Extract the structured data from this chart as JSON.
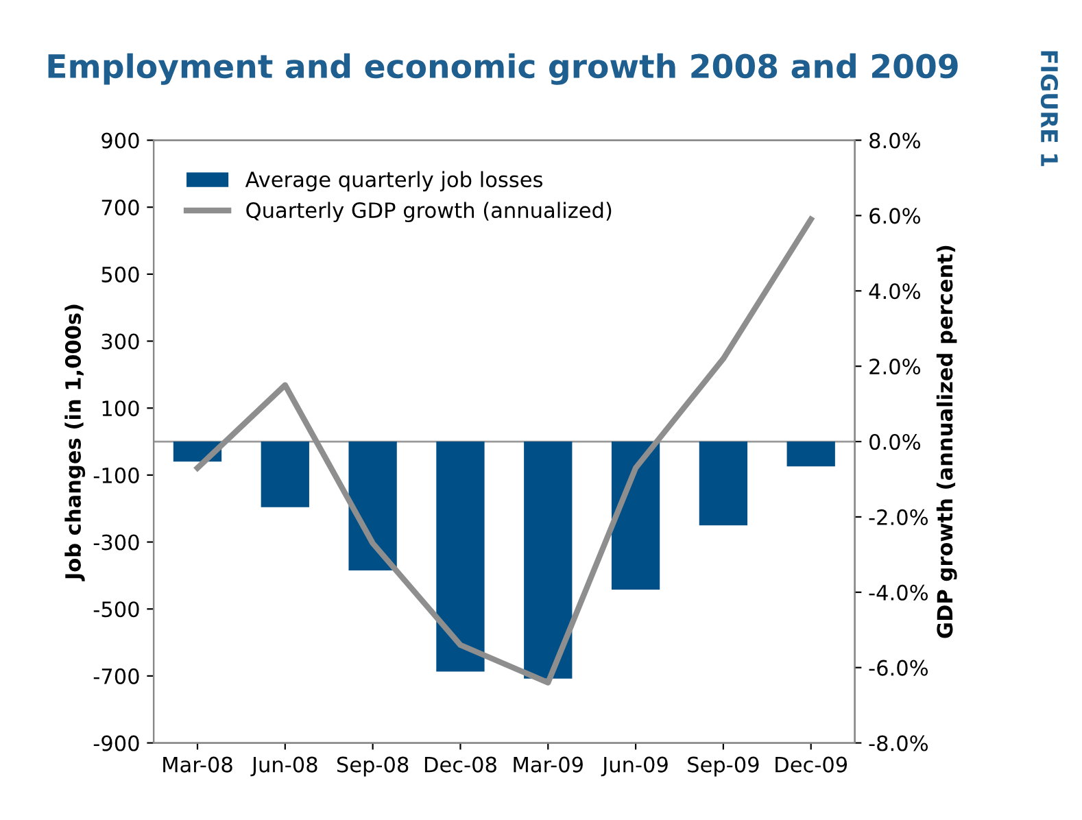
{
  "chart_data": {
    "type": "bar",
    "title": "Employment and economic growth 2008 and 2009",
    "categories": [
      "Mar-08",
      "Jun-08",
      "Sep-08",
      "Dec-08",
      "Mar-09",
      "Jun-09",
      "Sep-09",
      "Dec-09"
    ],
    "series": [
      {
        "name": "Average quarterly job losses",
        "color": "#004f86",
        "values": [
          -60,
          -196,
          -385,
          -687,
          -708,
          -442,
          -250,
          -74
        ]
      },
      {
        "name": "Quarterly GDP growth (annualized)",
        "type": "line",
        "axis": "y2",
        "color": "#8e8e8e",
        "values": [
          -0.7,
          1.5,
          -2.7,
          -5.4,
          -6.4,
          -0.7,
          2.2,
          5.9
        ]
      }
    ],
    "ylabel": "Job changes (in 1,000s)",
    "y2label": "GDP growth (annualized percent)",
    "ylim": [
      -900,
      900
    ],
    "yticks": [
      -900,
      -700,
      -500,
      -300,
      -100,
      100,
      300,
      500,
      700,
      900
    ],
    "y2lim": [
      -8,
      8
    ],
    "y2ticks": [
      {
        "value": -8,
        "label": "-8.0%"
      },
      {
        "value": -6,
        "label": "-6.0%"
      },
      {
        "value": -4,
        "label": "-4.0%"
      },
      {
        "value": -2,
        "label": "-2.0%"
      },
      {
        "value": 0,
        "label": "0.0%"
      },
      {
        "value": 2,
        "label": "2.0%"
      },
      {
        "value": 4,
        "label": "4.0%"
      },
      {
        "value": 6,
        "label": "6.0%"
      },
      {
        "value": 8,
        "label": "8.0%"
      }
    ],
    "ref_lines": [
      {
        "axis": "y",
        "value": 0,
        "color": "#999999"
      }
    ],
    "legend": "top left",
    "grid": false,
    "marker": "none",
    "line_style": "solid",
    "annotations": [
      "FIGURE 1"
    ]
  }
}
